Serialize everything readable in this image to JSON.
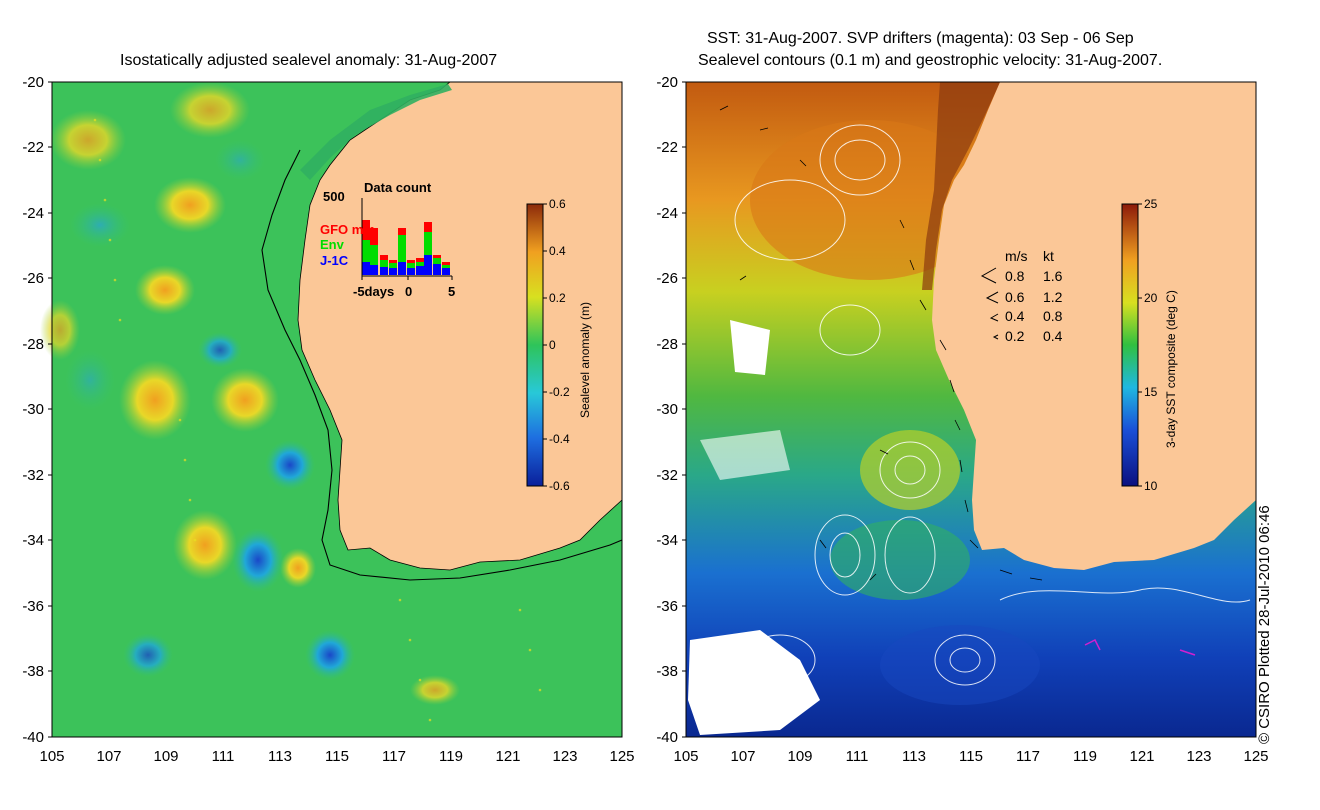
{
  "left_panel": {
    "title": "Isostatically adjusted sealevel anomaly: 31-Aug-2007",
    "colorbar": {
      "title": "Sealevel anomaly (m)",
      "ticks": [
        "0.6",
        "0.4",
        "0.2",
        "0",
        "-0.2",
        "-0.4",
        "-0.6"
      ]
    },
    "inset": {
      "title": "Data count",
      "ymax_label": "500",
      "series": [
        "GFO mm",
        "Env",
        "J-1C"
      ],
      "xaxis_labels": [
        "-5days",
        "0",
        "5"
      ]
    }
  },
  "right_panel": {
    "title_line1": "SST: 31-Aug-2007. SVP drifters (magenta): 03 Sep - 06 Sep",
    "title_line2": "Sealevel contours (0.1 m) and geostrophic velocity: 31-Aug-2007.",
    "colorbar": {
      "title": "3-day SST composite (deg C)",
      "ticks": [
        "25",
        "20",
        "15",
        "10"
      ]
    },
    "velocity_legend": {
      "header_ms": "m/s",
      "header_kt": "kt",
      "rows": [
        {
          "ms": "0.8",
          "kt": "1.6"
        },
        {
          "ms": "0.6",
          "kt": "1.2"
        },
        {
          "ms": "0.4",
          "kt": "0.8"
        },
        {
          "ms": "0.2",
          "kt": "0.4"
        }
      ]
    }
  },
  "axes": {
    "y_labels": [
      "-20",
      "-22",
      "-24",
      "-26",
      "-28",
      "-30",
      "-32",
      "-34",
      "-36",
      "-38",
      "-40"
    ],
    "x_labels": [
      "105",
      "107",
      "109",
      "111",
      "113",
      "115",
      "117",
      "119",
      "121",
      "123",
      "125"
    ]
  },
  "copyright": "© CSIRO Plotted 28-Jul-2010 06:46",
  "colors": {
    "land": "#fbc797",
    "ocean_mid": "#3cc25a",
    "sst_warm": "#c8500e",
    "sst_cool": "#1546c8",
    "gfo": "#ff0000",
    "env": "#00dd00",
    "j1c": "#0000ff"
  }
}
